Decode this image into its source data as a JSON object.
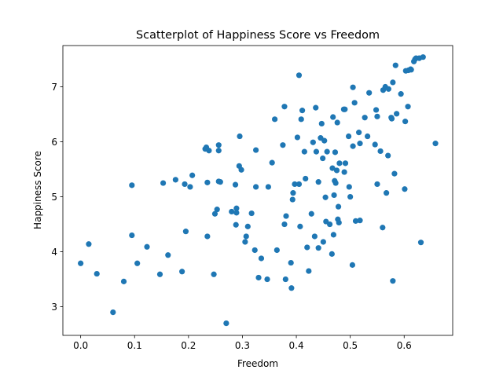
{
  "chart_data": {
    "type": "scatter",
    "title": "Scatterplot of Happiness Score vs Freedom",
    "xlabel": "Freedom",
    "ylabel": "Happiness Score",
    "xlim": [
      -0.033,
      0.69
    ],
    "ylim": [
      2.48,
      7.75
    ],
    "xticks": [
      0.0,
      0.1,
      0.2,
      0.3,
      0.4,
      0.5,
      0.6
    ],
    "xtick_labels": [
      "0.0",
      "0.1",
      "0.2",
      "0.3",
      "0.4",
      "0.5",
      "0.6"
    ],
    "yticks": [
      3,
      4,
      5,
      6,
      7
    ],
    "ytick_labels": [
      "3",
      "4",
      "5",
      "6",
      "7"
    ],
    "grid": false,
    "marker_color": "#1f77b4",
    "points": [
      [
        0.0,
        3.79
      ],
      [
        0.015,
        4.14
      ],
      [
        0.03,
        3.6
      ],
      [
        0.06,
        2.9
      ],
      [
        0.08,
        3.46
      ],
      [
        0.095,
        4.3
      ],
      [
        0.095,
        5.21
      ],
      [
        0.105,
        3.79
      ],
      [
        0.123,
        4.09
      ],
      [
        0.147,
        3.59
      ],
      [
        0.153,
        5.25
      ],
      [
        0.162,
        3.94
      ],
      [
        0.176,
        5.31
      ],
      [
        0.188,
        3.64
      ],
      [
        0.193,
        5.23
      ],
      [
        0.195,
        4.37
      ],
      [
        0.203,
        5.18
      ],
      [
        0.207,
        5.39
      ],
      [
        0.231,
        5.87
      ],
      [
        0.233,
        5.9
      ],
      [
        0.235,
        5.26
      ],
      [
        0.235,
        4.28
      ],
      [
        0.238,
        5.84
      ],
      [
        0.247,
        3.59
      ],
      [
        0.249,
        4.69
      ],
      [
        0.253,
        4.77
      ],
      [
        0.256,
        5.94
      ],
      [
        0.256,
        5.84
      ],
      [
        0.256,
        5.28
      ],
      [
        0.259,
        5.27
      ],
      [
        0.27,
        2.7
      ],
      [
        0.28,
        4.73
      ],
      [
        0.287,
        5.22
      ],
      [
        0.288,
        4.49
      ],
      [
        0.289,
        4.79
      ],
      [
        0.289,
        4.71
      ],
      [
        0.294,
        5.56
      ],
      [
        0.295,
        6.1
      ],
      [
        0.298,
        5.49
      ],
      [
        0.305,
        4.18
      ],
      [
        0.307,
        4.28
      ],
      [
        0.31,
        4.46
      ],
      [
        0.317,
        4.7
      ],
      [
        0.323,
        4.03
      ],
      [
        0.325,
        5.18
      ],
      [
        0.325,
        5.85
      ],
      [
        0.33,
        3.53
      ],
      [
        0.335,
        3.88
      ],
      [
        0.346,
        3.5
      ],
      [
        0.348,
        5.18
      ],
      [
        0.355,
        5.62
      ],
      [
        0.36,
        6.41
      ],
      [
        0.364,
        4.03
      ],
      [
        0.375,
        5.94
      ],
      [
        0.378,
        6.64
      ],
      [
        0.378,
        4.5
      ],
      [
        0.38,
        3.5
      ],
      [
        0.381,
        4.65
      ],
      [
        0.39,
        3.8
      ],
      [
        0.391,
        3.34
      ],
      [
        0.393,
        4.95
      ],
      [
        0.394,
        5.07
      ],
      [
        0.397,
        5.23
      ],
      [
        0.402,
        6.08
      ],
      [
        0.405,
        7.21
      ],
      [
        0.405,
        5.23
      ],
      [
        0.407,
        4.46
      ],
      [
        0.409,
        6.41
      ],
      [
        0.411,
        6.57
      ],
      [
        0.415,
        5.82
      ],
      [
        0.417,
        5.33
      ],
      [
        0.42,
        4.08
      ],
      [
        0.423,
        3.65
      ],
      [
        0.428,
        4.69
      ],
      [
        0.431,
        5.99
      ],
      [
        0.434,
        4.28
      ],
      [
        0.436,
        6.62
      ],
      [
        0.437,
        5.82
      ],
      [
        0.441,
        5.27
      ],
      [
        0.441,
        4.07
      ],
      [
        0.445,
        6.07
      ],
      [
        0.447,
        6.33
      ],
      [
        0.449,
        5.7
      ],
      [
        0.45,
        4.18
      ],
      [
        0.452,
        6.02
      ],
      [
        0.454,
        4.99
      ],
      [
        0.455,
        4.55
      ],
      [
        0.457,
        5.82
      ],
      [
        0.462,
        4.5
      ],
      [
        0.466,
        3.96
      ],
      [
        0.467,
        5.52
      ],
      [
        0.468,
        6.45
      ],
      [
        0.469,
        4.31
      ],
      [
        0.47,
        5.03
      ],
      [
        0.471,
        5.29
      ],
      [
        0.472,
        5.81
      ],
      [
        0.473,
        5.25
      ],
      [
        0.475,
        5.48
      ],
      [
        0.476,
        6.35
      ],
      [
        0.477,
        4.59
      ],
      [
        0.478,
        4.82
      ],
      [
        0.479,
        4.53
      ],
      [
        0.48,
        5.61
      ],
      [
        0.488,
        6.59
      ],
      [
        0.489,
        5.45
      ],
      [
        0.49,
        6.59
      ],
      [
        0.491,
        5.61
      ],
      [
        0.497,
        6.1
      ],
      [
        0.498,
        5.18
      ],
      [
        0.5,
        5.0
      ],
      [
        0.504,
        3.76
      ],
      [
        0.505,
        6.99
      ],
      [
        0.505,
        5.92
      ],
      [
        0.508,
        6.71
      ],
      [
        0.51,
        4.56
      ],
      [
        0.516,
        6.17
      ],
      [
        0.518,
        4.57
      ],
      [
        0.518,
        5.97
      ],
      [
        0.527,
        6.44
      ],
      [
        0.532,
        6.1
      ],
      [
        0.535,
        6.89
      ],
      [
        0.546,
        5.95
      ],
      [
        0.548,
        6.58
      ],
      [
        0.55,
        6.46
      ],
      [
        0.55,
        5.23
      ],
      [
        0.556,
        5.83
      ],
      [
        0.56,
        4.44
      ],
      [
        0.561,
        6.94
      ],
      [
        0.565,
        7.0
      ],
      [
        0.567,
        5.07
      ],
      [
        0.57,
        5.75
      ],
      [
        0.571,
        6.96
      ],
      [
        0.576,
        6.44
      ],
      [
        0.577,
        6.42
      ],
      [
        0.579,
        3.47
      ],
      [
        0.579,
        7.08
      ],
      [
        0.582,
        5.42
      ],
      [
        0.584,
        7.39
      ],
      [
        0.586,
        6.51
      ],
      [
        0.594,
        6.87
      ],
      [
        0.601,
        5.14
      ],
      [
        0.602,
        6.37
      ],
      [
        0.603,
        7.29
      ],
      [
        0.607,
        6.64
      ],
      [
        0.608,
        7.3
      ],
      [
        0.612,
        7.32
      ],
      [
        0.613,
        7.31
      ],
      [
        0.618,
        7.46
      ],
      [
        0.62,
        7.5
      ],
      [
        0.622,
        7.52
      ],
      [
        0.628,
        7.52
      ],
      [
        0.631,
        4.17
      ],
      [
        0.635,
        7.54
      ],
      [
        0.658,
        5.97
      ]
    ]
  }
}
